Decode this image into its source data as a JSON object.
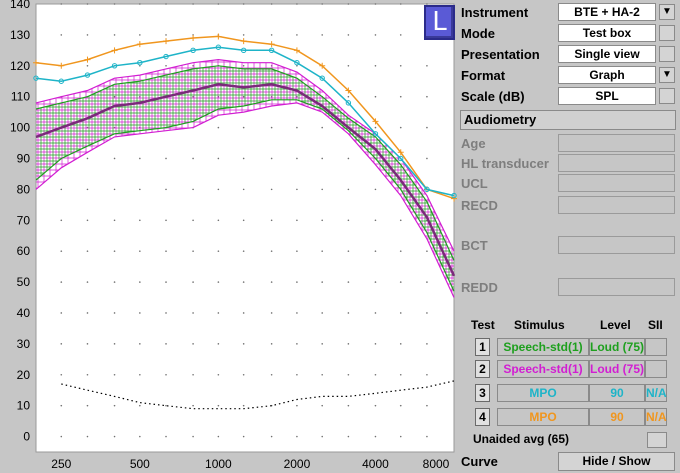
{
  "badge": {
    "label": "L"
  },
  "settings": [
    {
      "label": "Instrument",
      "value": "BTE + HA-2",
      "control": "dropdown"
    },
    {
      "label": "Mode",
      "value": "Test box",
      "control": "button"
    },
    {
      "label": "Presentation",
      "value": "Single view",
      "control": "button"
    },
    {
      "label": "Format",
      "value": "Graph",
      "control": "dropdown"
    },
    {
      "label": "Scale (dB)",
      "value": "SPL",
      "control": "button"
    }
  ],
  "audiometry": {
    "button_label": "Audiometry",
    "fields": [
      {
        "label": "Age"
      },
      {
        "label": "HL transducer"
      },
      {
        "label": "UCL"
      },
      {
        "label": "RECD"
      },
      {
        "label": "BCT"
      },
      {
        "label": "REDD"
      }
    ]
  },
  "tests": {
    "headers": {
      "test": "Test",
      "stimulus": "Stimulus",
      "level": "Level",
      "sii": "SII"
    },
    "rows": [
      {
        "num": "1",
        "stimulus": "Speech-std(1)",
        "level": "Loud (75)",
        "sii": "",
        "color": "#1ea01e"
      },
      {
        "num": "2",
        "stimulus": "Speech-std(1)",
        "level": "Loud (75)",
        "sii": "",
        "color": "#d21ed2"
      },
      {
        "num": "3",
        "stimulus": "MPO",
        "level": "90",
        "sii": "N/A",
        "color": "#1eb4c8"
      },
      {
        "num": "4",
        "stimulus": "MPO",
        "level": "90",
        "sii": "N/A",
        "color": "#f0961e"
      }
    ],
    "unaided_label": "Unaided avg (65)"
  },
  "curve": {
    "label": "Curve",
    "button_label": "Hide / Show"
  },
  "chart_data": {
    "type": "line",
    "x_scale": "log",
    "x_ticks": [
      250,
      500,
      1000,
      2000,
      4000,
      8000
    ],
    "y_ticks": [
      0,
      10,
      20,
      30,
      40,
      50,
      60,
      70,
      80,
      90,
      100,
      110,
      120,
      130,
      140
    ],
    "xlim": [
      200,
      8000
    ],
    "ylim": [
      -5,
      140
    ],
    "grid": true,
    "x": [
      200,
      250,
      315,
      400,
      500,
      630,
      800,
      1000,
      1250,
      1600,
      2000,
      2500,
      3150,
      4000,
      5000,
      6300,
      8000
    ],
    "series": [
      {
        "color": "#f0961e",
        "marker": "plus",
        "values": [
          121,
          120,
          122,
          125,
          127,
          128,
          129,
          129.5,
          128,
          127,
          125,
          120,
          112,
          102,
          92,
          80,
          77
        ]
      },
      {
        "color": "#1eb4c8",
        "marker": "circle",
        "values": [
          116,
          115,
          117,
          120,
          121,
          123,
          125,
          126,
          125,
          125,
          121,
          116,
          108,
          98,
          90,
          80,
          78
        ]
      },
      {
        "color": "#d21ed2",
        "style": "upper-bound",
        "values": [
          108,
          110,
          112,
          116,
          117,
          119,
          121,
          122,
          121,
          121,
          118,
          112,
          104,
          98,
          90,
          78,
          60
        ]
      },
      {
        "color": "#d21ed2",
        "style": "lower-bound",
        "values": [
          80,
          87,
          92,
          97,
          98,
          99,
          100,
          104,
          105,
          107,
          108,
          105,
          98,
          88,
          78,
          64,
          45
        ]
      },
      {
        "color": "#1ea01e",
        "style": "upper-bound",
        "values": [
          106,
          108,
          110,
          114,
          115,
          117,
          119,
          120,
          119,
          119,
          116,
          110,
          103,
          97,
          88,
          76,
          57
        ]
      },
      {
        "color": "#1ea01e",
        "style": "lower-bound",
        "values": [
          83,
          90,
          94,
          98,
          99,
          100,
          102,
          106,
          107,
          109,
          109,
          106,
          99,
          90,
          80,
          66,
          47
        ]
      },
      {
        "color": "#7a2a7a",
        "style": "thick",
        "values": [
          97,
          100,
          103,
          107,
          108,
          110,
          112,
          114,
          113,
          114,
          112,
          107,
          100,
          93,
          83,
          71,
          52
        ]
      },
      {
        "color": "#000000",
        "style": "dotted",
        "values": [
          null,
          17,
          15,
          13,
          11,
          10,
          9,
          9,
          9,
          10,
          12,
          13,
          13,
          14,
          15,
          16,
          18
        ]
      }
    ]
  }
}
